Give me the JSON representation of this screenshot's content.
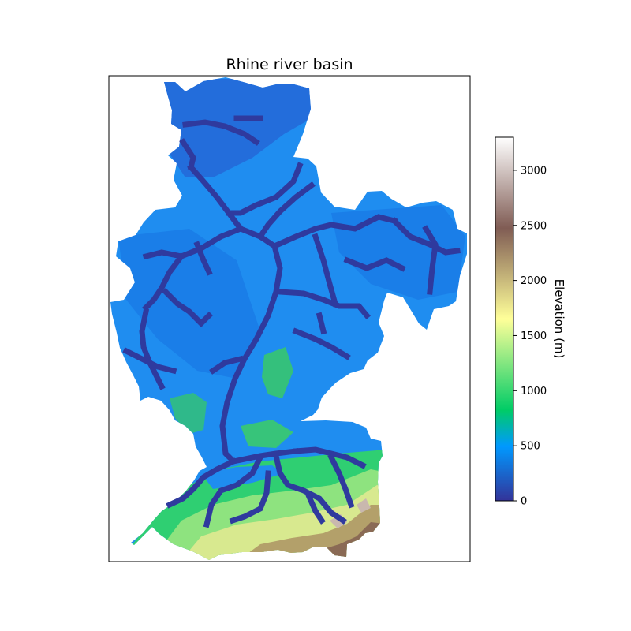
{
  "chart_data": {
    "type": "heatmap",
    "title": "Rhine river basin",
    "xlabel": "",
    "ylabel": "",
    "colormap": "terrain",
    "colorbar": {
      "label": "Elevation (m)",
      "ticks": [
        "0",
        "500",
        "1000",
        "1500",
        "2000",
        "2500",
        "3000"
      ],
      "tick_values": [
        0,
        500,
        1000,
        1500,
        2000,
        2500,
        3000
      ],
      "range": [
        0,
        3300
      ]
    },
    "x_ticks": [],
    "y_ticks": [],
    "grid": false,
    "legend": "none",
    "background_color": "#ffffff",
    "nodata_color": "#ffffff"
  }
}
